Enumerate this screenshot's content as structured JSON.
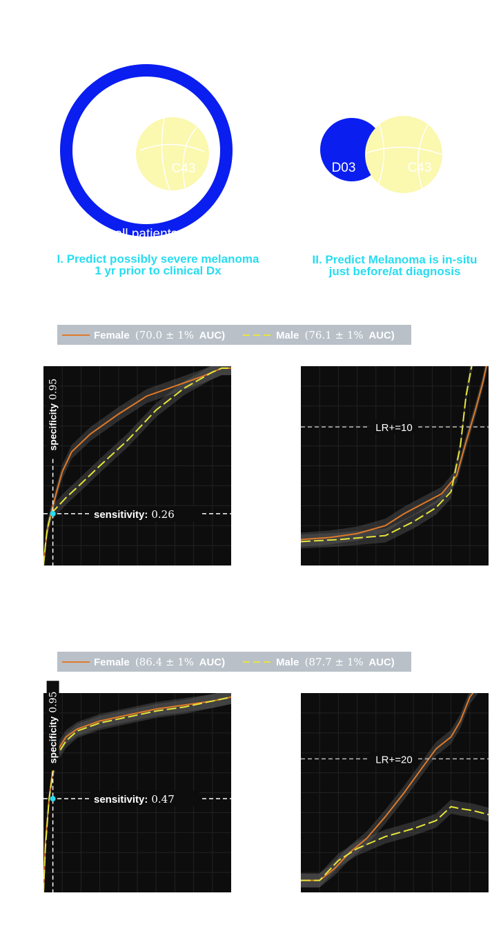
{
  "diagrams": {
    "left": {
      "outer_label": "all patients",
      "inner_label": "C43",
      "caption_line1": "I. Predict possibly severe melanoma",
      "caption_line2": "1 yr prior to clinical Dx"
    },
    "right": {
      "left_label": "D03",
      "right_label": "C43",
      "caption_line1": "II. Predict Melanoma is in-situ",
      "caption_line2": "just before/at diagnosis"
    },
    "colors": {
      "blue": "#0a1ef0",
      "yellow": "#fbf8b0",
      "cyan": "#27dcf0"
    }
  },
  "chart_data": [
    {
      "type": "line",
      "panel": "top-left",
      "legend": {
        "female_name": "Female",
        "female_stat": "(70.0 ± 1%",
        "female_suffix": "AUC)",
        "male_name": "Male",
        "male_stat": "(76.1 ± 1%",
        "male_suffix": "AUC)"
      },
      "ylabel": "specificity",
      "ylabel_value": "0.95",
      "annotation_label": "sensitivity:",
      "annotation_value": "0.26",
      "xlim": [
        0,
        1
      ],
      "ylim": [
        0,
        1
      ],
      "series": [
        {
          "name": "Female",
          "color": "#e07a28",
          "x": [
            0,
            0.01,
            0.02,
            0.04,
            0.07,
            0.1,
            0.15,
            0.25,
            0.4,
            0.55,
            0.7,
            0.85,
            0.95,
            1.0
          ],
          "y": [
            0,
            0.1,
            0.18,
            0.26,
            0.37,
            0.47,
            0.57,
            0.66,
            0.76,
            0.85,
            0.9,
            0.95,
            0.99,
            0.99
          ]
        },
        {
          "name": "Male",
          "color": "#e6e63a",
          "x": [
            0,
            0.01,
            0.02,
            0.04,
            0.07,
            0.12,
            0.2,
            0.3,
            0.45,
            0.6,
            0.75,
            0.9,
            0.95,
            1.0
          ],
          "y": [
            0,
            0.1,
            0.18,
            0.26,
            0.29,
            0.34,
            0.41,
            0.5,
            0.63,
            0.78,
            0.89,
            0.97,
            0.99,
            0.99
          ]
        }
      ]
    },
    {
      "type": "line",
      "panel": "top-right",
      "annotation": "LR+=10",
      "series": [
        {
          "name": "Female",
          "color": "#e07a28",
          "x": [
            0,
            0.15,
            0.3,
            0.45,
            0.55,
            0.65,
            0.75,
            0.83,
            0.88,
            0.93,
            0.97,
            1.0
          ],
          "y": [
            0.13,
            0.14,
            0.16,
            0.2,
            0.26,
            0.31,
            0.36,
            0.45,
            0.62,
            0.78,
            0.92,
            1.05
          ]
        },
        {
          "name": "Male",
          "color": "#e6e63a",
          "x": [
            0,
            0.2,
            0.45,
            0.6,
            0.72,
            0.8,
            0.85,
            0.88,
            0.92
          ],
          "y": [
            0.12,
            0.13,
            0.15,
            0.22,
            0.29,
            0.37,
            0.6,
            0.85,
            1.05
          ]
        }
      ]
    },
    {
      "type": "line",
      "panel": "bottom-left",
      "legend": {
        "female_name": "Female",
        "female_stat": "(86.4 ± 1%",
        "female_suffix": "AUC)",
        "male_name": "Male",
        "male_stat": "(87.7 ± 1%",
        "male_suffix": "AUC)"
      },
      "ylabel": "specificity",
      "ylabel_value": "0.95",
      "annotation_label": "sensitivity:",
      "annotation_value": "0.47",
      "xlim": [
        0,
        1
      ],
      "ylim": [
        0,
        1
      ],
      "series": [
        {
          "name": "Female",
          "color": "#e07a28",
          "x": [
            0,
            0.01,
            0.03,
            0.05,
            0.08,
            0.12,
            0.18,
            0.3,
            0.45,
            0.6,
            0.75,
            0.9,
            1.0
          ],
          "y": [
            0,
            0.25,
            0.47,
            0.62,
            0.72,
            0.78,
            0.82,
            0.86,
            0.89,
            0.92,
            0.94,
            0.96,
            0.98
          ]
        },
        {
          "name": "Male",
          "color": "#e6e63a",
          "x": [
            0,
            0.01,
            0.03,
            0.05,
            0.08,
            0.12,
            0.18,
            0.3,
            0.45,
            0.6,
            0.75,
            0.9,
            1.0
          ],
          "y": [
            0,
            0.22,
            0.47,
            0.6,
            0.7,
            0.76,
            0.81,
            0.85,
            0.88,
            0.91,
            0.93,
            0.96,
            0.98
          ]
        }
      ]
    },
    {
      "type": "line",
      "panel": "bottom-right",
      "annotation": "LR+=20",
      "series": [
        {
          "name": "Female",
          "color": "#e07a28",
          "x": [
            0,
            0.1,
            0.18,
            0.26,
            0.35,
            0.45,
            0.55,
            0.65,
            0.72,
            0.8,
            0.85,
            0.9,
            0.95
          ],
          "y": [
            0.06,
            0.06,
            0.12,
            0.2,
            0.27,
            0.38,
            0.5,
            0.63,
            0.72,
            0.78,
            0.86,
            0.98,
            1.04
          ]
        },
        {
          "name": "Male",
          "color": "#e6e63a",
          "x": [
            0,
            0.1,
            0.2,
            0.3,
            0.45,
            0.6,
            0.72,
            0.8,
            0.85,
            0.92,
            1.0
          ],
          "y": [
            0.06,
            0.06,
            0.16,
            0.22,
            0.28,
            0.32,
            0.36,
            0.43,
            0.42,
            0.41,
            0.39
          ]
        }
      ]
    }
  ]
}
